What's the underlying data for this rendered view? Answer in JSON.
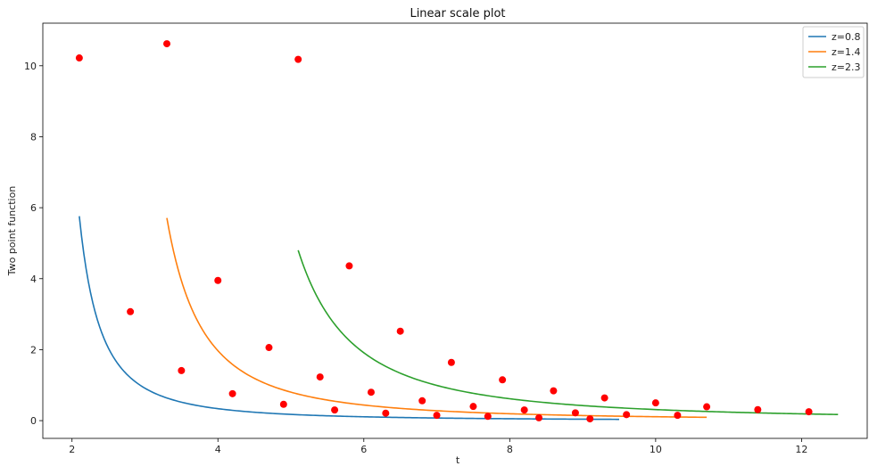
{
  "chart_data": {
    "type": "line",
    "title": "Linear scale plot",
    "xlabel": "t",
    "ylabel": "Two point function",
    "xlim": [
      1.6,
      12.9
    ],
    "ylim": [
      -0.5,
      11.2
    ],
    "xticks": [
      2,
      4,
      6,
      8,
      10,
      12
    ],
    "yticks": [
      0,
      2,
      4,
      6,
      8,
      10
    ],
    "grid": false,
    "legend_position": "top-right",
    "series": [
      {
        "name": "z=0.8",
        "color": "#1f77b4",
        "curve": {
          "A": 1.85,
          "t0": 1.55,
          "p": 1.9,
          "x_start": 2.1,
          "x_end": 9.5
        },
        "points": [
          {
            "x": 2.1,
            "y": 10.22
          },
          {
            "x": 2.8,
            "y": 3.07
          },
          {
            "x": 3.5,
            "y": 1.41
          },
          {
            "x": 4.2,
            "y": 0.76
          },
          {
            "x": 4.9,
            "y": 0.46
          },
          {
            "x": 5.6,
            "y": 0.3
          },
          {
            "x": 6.3,
            "y": 0.21
          },
          {
            "x": 7.0,
            "y": 0.15
          },
          {
            "x": 7.7,
            "y": 0.12
          },
          {
            "x": 8.4,
            "y": 0.08
          },
          {
            "x": 9.1,
            "y": 0.05
          }
        ]
      },
      {
        "name": "z=1.4",
        "color": "#ff7f0e",
        "curve": {
          "A": 4.7,
          "t0": 2.4,
          "p": 1.85,
          "x_start": 3.3,
          "x_end": 10.7
        },
        "points": [
          {
            "x": 3.3,
            "y": 10.62
          },
          {
            "x": 4.0,
            "y": 3.95
          },
          {
            "x": 4.7,
            "y": 2.06
          },
          {
            "x": 5.4,
            "y": 1.23
          },
          {
            "x": 6.1,
            "y": 0.8
          },
          {
            "x": 6.8,
            "y": 0.56
          },
          {
            "x": 7.5,
            "y": 0.4
          },
          {
            "x": 8.2,
            "y": 0.3
          },
          {
            "x": 8.9,
            "y": 0.22
          },
          {
            "x": 9.6,
            "y": 0.17
          },
          {
            "x": 10.3,
            "y": 0.15
          }
        ]
      },
      {
        "name": "z=2.3",
        "color": "#2ca02c",
        "curve": {
          "A": 7.6,
          "t0": 3.8,
          "p": 1.75,
          "x_start": 5.1,
          "x_end": 12.5
        },
        "points": [
          {
            "x": 5.1,
            "y": 10.18
          },
          {
            "x": 5.8,
            "y": 4.36
          },
          {
            "x": 6.5,
            "y": 2.52
          },
          {
            "x": 7.2,
            "y": 1.64
          },
          {
            "x": 7.9,
            "y": 1.15
          },
          {
            "x": 8.6,
            "y": 0.84
          },
          {
            "x": 9.3,
            "y": 0.64
          },
          {
            "x": 10.0,
            "y": 0.5
          },
          {
            "x": 10.7,
            "y": 0.39
          },
          {
            "x": 11.4,
            "y": 0.31
          },
          {
            "x": 12.1,
            "y": 0.25
          }
        ]
      }
    ],
    "marker_color": "#ff0000"
  }
}
